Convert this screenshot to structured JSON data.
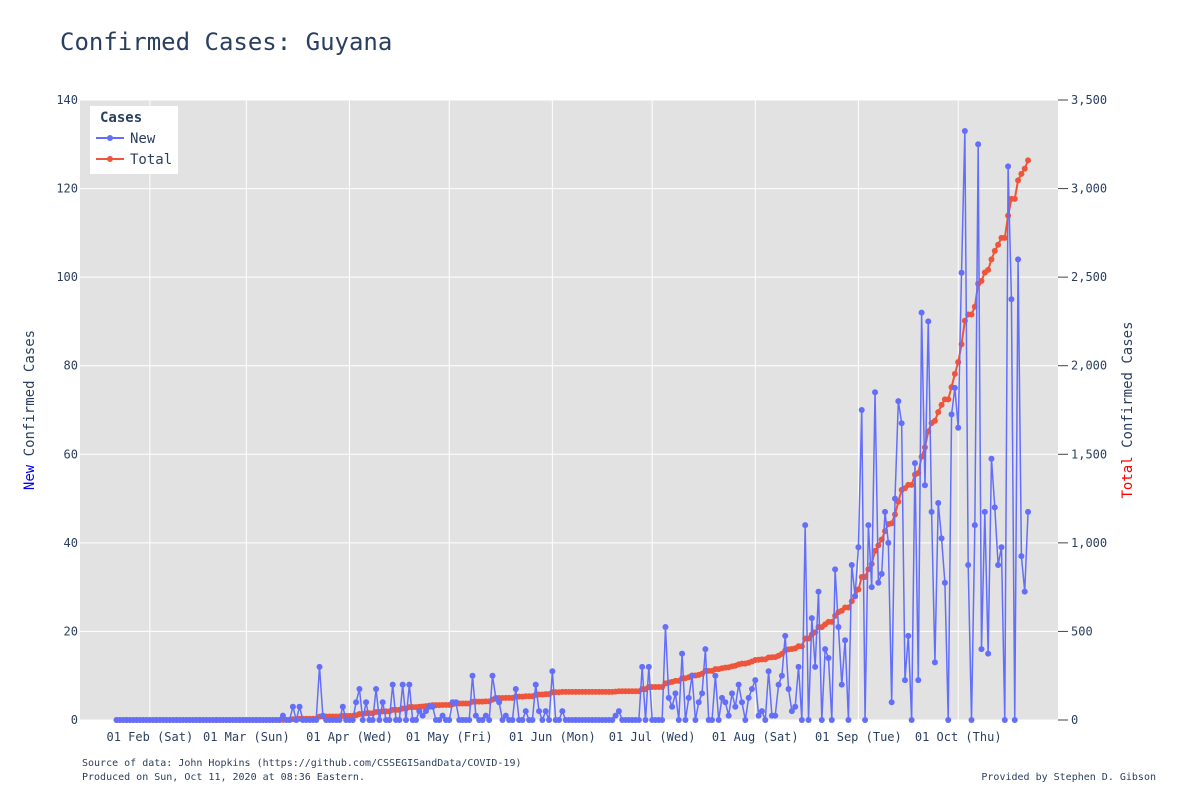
{
  "chart_data": {
    "type": "line",
    "title": "Confirmed Cases: Guyana",
    "y_left": {
      "label_colored": "New",
      "label_rest": " Confirmed Cases",
      "label_color": "#0000ff",
      "range": [
        0,
        140
      ],
      "ticks": [
        0,
        20,
        40,
        60,
        80,
        100,
        120,
        140
      ],
      "tick_labels": [
        "0",
        "20",
        "40",
        "60",
        "80",
        "100",
        "120",
        "140"
      ]
    },
    "y_right": {
      "label_colored": "Total",
      "label_rest": " Confirmed Cases",
      "label_color": "#ff0000",
      "range": [
        0,
        3500
      ],
      "ticks": [
        0,
        500,
        1000,
        1500,
        2000,
        2500,
        3000,
        3500
      ],
      "tick_labels": [
        "0",
        "500",
        "1,000",
        "1,500",
        "2,000",
        "2,500",
        "3,000",
        "3,500"
      ]
    },
    "x_axis": {
      "type": "date",
      "range": [
        "2020-01-11",
        "2020-10-31"
      ],
      "ticks": [
        "2020-02-01",
        "2020-03-01",
        "2020-04-01",
        "2020-05-01",
        "2020-06-01",
        "2020-07-01",
        "2020-08-01",
        "2020-09-01",
        "2020-10-01"
      ],
      "tick_labels": [
        "01 Feb (Sat)",
        "01 Mar (Sun)",
        "01 Apr (Wed)",
        "01 May (Fri)",
        "01 Jun (Mon)",
        "01 Jul (Wed)",
        "01 Aug (Sat)",
        "01 Sep (Tue)",
        "01 Oct (Thu)"
      ]
    },
    "start_date": "2020-01-22",
    "grid": true,
    "legend": {
      "title": "Cases",
      "placement": "top-left",
      "entries": [
        "New",
        "Total"
      ]
    },
    "series": [
      {
        "name": "New",
        "color": "#636efa",
        "axis": "left",
        "values": [
          0,
          0,
          0,
          0,
          0,
          0,
          0,
          0,
          0,
          0,
          0,
          0,
          0,
          0,
          0,
          0,
          0,
          0,
          0,
          0,
          0,
          0,
          0,
          0,
          0,
          0,
          0,
          0,
          0,
          0,
          0,
          0,
          0,
          0,
          0,
          0,
          0,
          0,
          0,
          0,
          0,
          0,
          0,
          0,
          0,
          0,
          0,
          0,
          0,
          0,
          1,
          0,
          0,
          3,
          0,
          3,
          0,
          0,
          0,
          0,
          0,
          12,
          1,
          0,
          0,
          0,
          0,
          0,
          3,
          0,
          0,
          0,
          4,
          7,
          0,
          4,
          0,
          0,
          7,
          0,
          4,
          0,
          0,
          8,
          0,
          0,
          8,
          0,
          8,
          0,
          0,
          2,
          1,
          2,
          3,
          3,
          0,
          0,
          1,
          0,
          0,
          4,
          4,
          0,
          0,
          0,
          0,
          10,
          1,
          0,
          0,
          1,
          0,
          10,
          5,
          4,
          0,
          1,
          0,
          0,
          7,
          0,
          0,
          2,
          0,
          0,
          8,
          2,
          0,
          2,
          0,
          11,
          0,
          0,
          2,
          0,
          0,
          0,
          0,
          0,
          0,
          0,
          0,
          0,
          0,
          0,
          0,
          0,
          0,
          0,
          1,
          2,
          0,
          0,
          0,
          0,
          0,
          0,
          12,
          0,
          12,
          0,
          0,
          0,
          0,
          21,
          5,
          3,
          6,
          0,
          15,
          0,
          5,
          10,
          0,
          4,
          6,
          16,
          0,
          0,
          10,
          0,
          5,
          4,
          1,
          6,
          3,
          8,
          4,
          0,
          5,
          7,
          9,
          1,
          2,
          0,
          11,
          1,
          1,
          8,
          10,
          19,
          7,
          2,
          3,
          12,
          0,
          44,
          0,
          23,
          12,
          29,
          0,
          16,
          14,
          0,
          34,
          21,
          8,
          18,
          0,
          35,
          28,
          39,
          70,
          0,
          44,
          30,
          74,
          31,
          33,
          47,
          40,
          4,
          50,
          72,
          67,
          9,
          19,
          0,
          58,
          9,
          92,
          53,
          90,
          47,
          13,
          49,
          41,
          31,
          0,
          69,
          75,
          66,
          101,
          133,
          35,
          0,
          44,
          130,
          16,
          47,
          15,
          59,
          48,
          35,
          39,
          0,
          125,
          95,
          0,
          104,
          37,
          29,
          47
        ]
      },
      {
        "name": "Total",
        "color": "#ef553b",
        "axis": "right",
        "values": [
          0,
          0,
          0,
          0,
          0,
          0,
          0,
          0,
          0,
          0,
          0,
          0,
          0,
          0,
          0,
          0,
          0,
          0,
          0,
          0,
          0,
          0,
          0,
          0,
          0,
          0,
          0,
          0,
          0,
          0,
          0,
          0,
          0,
          0,
          0,
          0,
          0,
          0,
          0,
          0,
          0,
          0,
          0,
          0,
          0,
          0,
          0,
          0,
          0,
          0,
          1,
          1,
          1,
          4,
          4,
          7,
          7,
          7,
          7,
          7,
          7,
          19,
          20,
          20,
          20,
          20,
          20,
          20,
          23,
          23,
          23,
          23,
          27,
          34,
          34,
          38,
          38,
          38,
          45,
          45,
          49,
          49,
          49,
          57,
          57,
          57,
          65,
          65,
          73,
          73,
          73,
          75,
          76,
          78,
          81,
          84,
          84,
          84,
          85,
          85,
          85,
          89,
          93,
          93,
          93,
          93,
          93,
          103,
          104,
          104,
          104,
          105,
          105,
          115,
          120,
          124,
          124,
          125,
          125,
          125,
          132,
          132,
          132,
          134,
          134,
          134,
          142,
          144,
          144,
          146,
          146,
          157,
          157,
          157,
          159,
          159,
          159,
          159,
          159,
          159,
          159,
          159,
          159,
          159,
          159,
          159,
          159,
          159,
          159,
          159,
          160,
          162,
          162,
          162,
          162,
          162,
          162,
          162,
          174,
          174,
          186,
          186,
          186,
          186,
          186,
          207,
          212,
          215,
          221,
          221,
          236,
          236,
          241,
          251,
          251,
          255,
          261,
          277,
          277,
          277,
          287,
          287,
          292,
          296,
          297,
          303,
          306,
          314,
          318,
          318,
          323,
          330,
          339,
          340,
          342,
          342,
          353,
          354,
          355,
          363,
          373,
          392,
          399,
          401,
          404,
          416,
          416,
          460,
          460,
          483,
          495,
          524,
          524,
          540,
          554,
          554,
          588,
          609,
          617,
          635,
          635,
          670,
          698,
          737,
          807,
          807,
          851,
          881,
          955,
          986,
          1019,
          1066,
          1106,
          1110,
          1160,
          1232,
          1299,
          1308,
          1327,
          1327,
          1385,
          1394,
          1486,
          1539,
          1629,
          1676,
          1689,
          1738,
          1779,
          1810,
          1810,
          1879,
          1954,
          2020,
          2121,
          2254,
          2289,
          2289,
          2333,
          2463,
          2479,
          2526,
          2541,
          2600,
          2648,
          2683,
          2722,
          2722,
          2847,
          2942,
          2942,
          3046,
          3083,
          3112,
          3159
        ]
      }
    ]
  },
  "footer": {
    "source": "Source of data: John Hopkins (https://github.com/CSSEGISandData/COVID-19)",
    "produced": "Produced on Sun, Oct 11, 2020 at 08:36 Eastern.",
    "credit": "Provided by Stephen D. Gibson"
  }
}
